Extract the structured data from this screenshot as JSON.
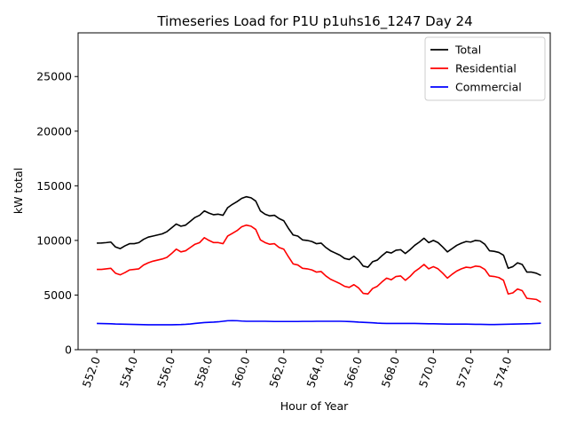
{
  "chart_data": {
    "type": "line",
    "title": "Timeseries Load for P1U p1uhs16_1247  Day 24",
    "xlabel": "Hour of Year",
    "ylabel": "kW total",
    "xlim": [
      551.0,
      576.25
    ],
    "ylim": [
      0,
      29000
    ],
    "x_ticks": [
      552,
      554,
      556,
      558,
      560,
      562,
      564,
      566,
      568,
      570,
      572,
      574
    ],
    "x_tick_labels": [
      "552.0",
      "554.0",
      "556.0",
      "558.0",
      "560.0",
      "562.0",
      "564.0",
      "566.0",
      "568.0",
      "570.0",
      "572.0",
      "574.0"
    ],
    "y_ticks": [
      0,
      5000,
      10000,
      15000,
      20000,
      25000
    ],
    "y_tick_labels": [
      "0",
      "5000",
      "10000",
      "15000",
      "20000",
      "25000"
    ],
    "legend_position": "top-right",
    "x_start": 552.0,
    "x_step": 0.25,
    "series": [
      {
        "name": "Total",
        "color": "#000000",
        "values": [
          9750,
          9760,
          9800,
          9850,
          9400,
          9250,
          9500,
          9700,
          9700,
          9800,
          10100,
          10300,
          10400,
          10500,
          10600,
          10800,
          11150,
          11500,
          11300,
          11400,
          11750,
          12100,
          12300,
          12700,
          12500,
          12350,
          12400,
          12300,
          13000,
          13300,
          13550,
          13850,
          14000,
          13900,
          13600,
          12700,
          12400,
          12250,
          12300,
          12000,
          11800,
          11100,
          10500,
          10400,
          10050,
          10000,
          9900,
          9700,
          9750,
          9350,
          9050,
          8850,
          8650,
          8350,
          8250,
          8550,
          8200,
          7650,
          7550,
          8050,
          8200,
          8600,
          8950,
          8850,
          9100,
          9150,
          8800,
          9150,
          9550,
          9850,
          10200,
          9800,
          10000,
          9800,
          9400,
          8950,
          9250,
          9550,
          9750,
          9900,
          9850,
          10000,
          9950,
          9650,
          9050,
          9000,
          8900,
          8650,
          7450,
          7600,
          7950,
          7800,
          7100,
          7100,
          7000,
          6800
        ]
      },
      {
        "name": "Residential",
        "color": "#ff0000",
        "values": [
          7350,
          7350,
          7400,
          7450,
          7000,
          6850,
          7050,
          7300,
          7350,
          7400,
          7750,
          7950,
          8100,
          8200,
          8300,
          8450,
          8800,
          9200,
          8950,
          9050,
          9350,
          9650,
          9800,
          10250,
          10000,
          9800,
          9800,
          9700,
          10400,
          10650,
          10900,
          11250,
          11400,
          11300,
          11000,
          10050,
          9800,
          9650,
          9700,
          9350,
          9200,
          8500,
          7850,
          7750,
          7450,
          7400,
          7300,
          7100,
          7150,
          6750,
          6450,
          6250,
          6050,
          5800,
          5700,
          5950,
          5650,
          5150,
          5100,
          5600,
          5800,
          6200,
          6550,
          6400,
          6700,
          6750,
          6350,
          6700,
          7150,
          7450,
          7800,
          7400,
          7600,
          7400,
          7000,
          6550,
          6900,
          7200,
          7400,
          7550,
          7500,
          7650,
          7600,
          7350,
          6750,
          6700,
          6600,
          6350,
          5100,
          5200,
          5550,
          5400,
          4700,
          4650,
          4600,
          4350
        ]
      },
      {
        "name": "Commercial",
        "color": "#0000ff",
        "values": [
          2400,
          2390,
          2380,
          2370,
          2350,
          2340,
          2330,
          2320,
          2310,
          2300,
          2290,
          2280,
          2280,
          2280,
          2280,
          2280,
          2280,
          2290,
          2300,
          2320,
          2350,
          2400,
          2440,
          2480,
          2500,
          2520,
          2550,
          2600,
          2650,
          2660,
          2650,
          2620,
          2600,
          2600,
          2600,
          2600,
          2600,
          2590,
          2580,
          2580,
          2580,
          2580,
          2580,
          2580,
          2590,
          2590,
          2590,
          2600,
          2600,
          2600,
          2600,
          2600,
          2600,
          2590,
          2570,
          2550,
          2520,
          2500,
          2480,
          2460,
          2430,
          2410,
          2400,
          2400,
          2400,
          2400,
          2400,
          2400,
          2400,
          2390,
          2380,
          2370,
          2370,
          2360,
          2350,
          2340,
          2340,
          2340,
          2340,
          2340,
          2330,
          2320,
          2320,
          2310,
          2300,
          2300,
          2310,
          2320,
          2330,
          2340,
          2350,
          2360,
          2370,
          2380,
          2400,
          2420
        ]
      }
    ]
  }
}
